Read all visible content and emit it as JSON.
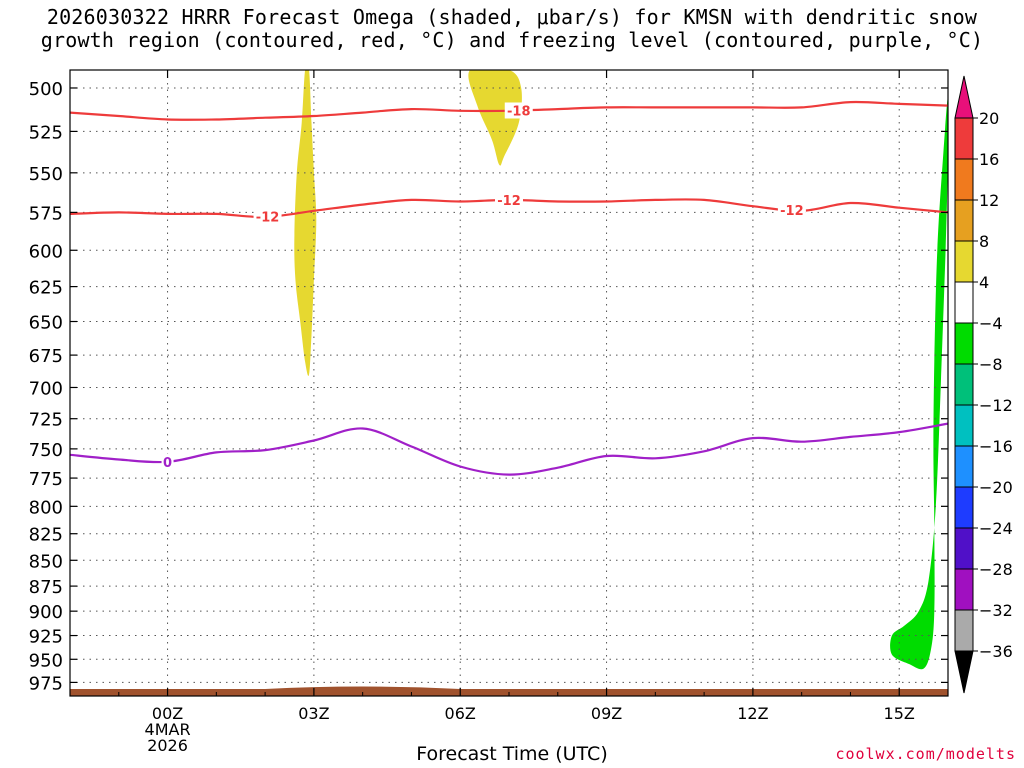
{
  "header": {
    "title_line1": "2026030322 HRRR Forecast Omega (shaded, μbar/s) for KMSN with dendritic snow",
    "title_line2": "growth region (contoured, red, °C) and freezing level (contoured, purple, °C)"
  },
  "footer": {
    "credit": "coolwx.com/modelts"
  },
  "chart_data": {
    "type": "contour",
    "xlabel": "Forecast Time (UTC)",
    "ylabel": "",
    "x_units": "hours since 2026-03-03 22Z",
    "xlim": [
      0,
      18
    ],
    "ylim": [
      990,
      490
    ],
    "y_scale": "log-pressure (inverted)",
    "grid": true,
    "x_ticks": [
      {
        "x": 2,
        "label": "00Z",
        "sub1": "4MAR",
        "sub2": "2026"
      },
      {
        "x": 5,
        "label": "03Z"
      },
      {
        "x": 8,
        "label": "06Z"
      },
      {
        "x": 11,
        "label": "09Z"
      },
      {
        "x": 14,
        "label": "12Z"
      },
      {
        "x": 17,
        "label": "15Z"
      }
    ],
    "y_ticks": [
      500,
      525,
      550,
      575,
      600,
      625,
      650,
      675,
      700,
      725,
      750,
      775,
      800,
      825,
      850,
      875,
      900,
      925,
      950,
      975
    ],
    "isotherms": [
      {
        "name": "-18",
        "color": "#ee3b3b",
        "points": [
          [
            0,
            514
          ],
          [
            1,
            516
          ],
          [
            2,
            518
          ],
          [
            3,
            518
          ],
          [
            4,
            517
          ],
          [
            5,
            516
          ],
          [
            6,
            514
          ],
          [
            7,
            512
          ],
          [
            8,
            513
          ],
          [
            9,
            513
          ],
          [
            10,
            512
          ],
          [
            11,
            511
          ],
          [
            12,
            511
          ],
          [
            13,
            511
          ],
          [
            14,
            511
          ],
          [
            15,
            511
          ],
          [
            16,
            508
          ],
          [
            17,
            509
          ],
          [
            18,
            510
          ]
        ],
        "labels": [
          {
            "x": 9.2,
            "text": "-18"
          }
        ]
      },
      {
        "name": "-12",
        "color": "#ee3b3b",
        "points": [
          [
            0,
            576
          ],
          [
            1,
            575
          ],
          [
            2,
            576
          ],
          [
            3,
            576
          ],
          [
            4,
            578
          ],
          [
            5,
            574
          ],
          [
            6,
            570
          ],
          [
            7,
            567
          ],
          [
            8,
            568
          ],
          [
            9,
            567
          ],
          [
            10,
            568
          ],
          [
            11,
            568
          ],
          [
            12,
            567
          ],
          [
            13,
            567
          ],
          [
            14,
            571
          ],
          [
            15,
            574
          ],
          [
            16,
            569
          ],
          [
            17,
            572
          ],
          [
            18,
            575
          ]
        ],
        "labels": [
          {
            "x": 4.05,
            "text": "-12"
          },
          {
            "x": 9.0,
            "text": "-12"
          },
          {
            "x": 14.8,
            "text": "-12"
          }
        ]
      },
      {
        "name": "0",
        "color": "#a020c8",
        "points": [
          [
            0,
            755
          ],
          [
            1,
            759
          ],
          [
            2,
            761
          ],
          [
            3,
            753
          ],
          [
            4,
            751
          ],
          [
            5,
            743
          ],
          [
            6,
            733
          ],
          [
            7,
            748
          ],
          [
            8,
            765
          ],
          [
            9,
            772
          ],
          [
            10,
            766
          ],
          [
            11,
            756
          ],
          [
            12,
            758
          ],
          [
            13,
            752
          ],
          [
            14,
            741
          ],
          [
            15,
            744
          ],
          [
            16,
            740
          ],
          [
            17,
            736
          ],
          [
            18,
            729
          ]
        ],
        "labels": [
          {
            "x": 2.0,
            "text": "0"
          }
        ]
      }
    ],
    "shaded_regions": [
      {
        "omega_range": "4 to 8",
        "color": "#e6d830",
        "points": [
          [
            4.9,
            490
          ],
          [
            4.95,
            520
          ],
          [
            5.0,
            550
          ],
          [
            5.05,
            580
          ],
          [
            5.0,
            620
          ],
          [
            4.95,
            660
          ],
          [
            4.9,
            690
          ],
          [
            4.82,
            680
          ],
          [
            4.72,
            650
          ],
          [
            4.62,
            620
          ],
          [
            4.6,
            590
          ],
          [
            4.65,
            550
          ],
          [
            4.75,
            520
          ],
          [
            4.82,
            490
          ]
        ]
      },
      {
        "omega_range": "4 to 8",
        "color": "#e6d830",
        "points": [
          [
            9.0,
            490
          ],
          [
            9.25,
            500
          ],
          [
            9.2,
            520
          ],
          [
            8.9,
            540
          ],
          [
            8.8,
            545
          ],
          [
            8.65,
            530
          ],
          [
            8.35,
            510
          ],
          [
            8.2,
            490
          ]
        ]
      },
      {
        "omega_range": "-4 to -8",
        "color": "#00dc00",
        "points": [
          [
            18.0,
            505
          ],
          [
            17.9,
            540
          ],
          [
            17.78,
            600
          ],
          [
            17.72,
            680
          ],
          [
            17.7,
            750
          ],
          [
            17.72,
            820
          ],
          [
            17.72,
            900
          ],
          [
            17.65,
            940
          ],
          [
            17.5,
            960
          ],
          [
            17.2,
            955
          ],
          [
            16.85,
            945
          ],
          [
            16.85,
            925
          ],
          [
            17.1,
            915
          ],
          [
            17.4,
            900
          ],
          [
            17.6,
            870
          ],
          [
            17.75,
            800
          ],
          [
            17.85,
            700
          ],
          [
            17.95,
            600
          ],
          [
            18.0,
            540
          ]
        ]
      }
    ],
    "ground": {
      "color": "#a0522d"
    },
    "colorbar": {
      "labels": [
        "20",
        "16",
        "12",
        "8",
        "4",
        "-4",
        "-8",
        "-12",
        "-16",
        "-20",
        "-24",
        "-28",
        "-32",
        "-36"
      ],
      "colors": [
        "#e8107a",
        "#ee3b3b",
        "#f07a1e",
        "#e6a020",
        "#e6d830",
        "#ffffff",
        "#00dc00",
        "#00c07a",
        "#00c0c0",
        "#1e90ff",
        "#1e3cff",
        "#5010c8",
        "#a010c0",
        "#aaaaaa",
        "#000000"
      ]
    }
  }
}
